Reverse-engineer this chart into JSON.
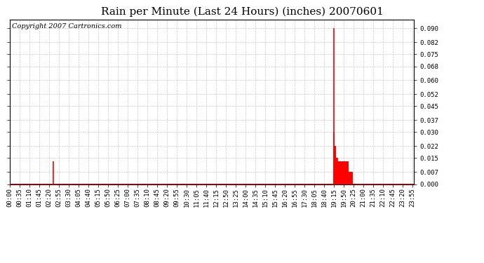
{
  "title": "Rain per Minute (Last 24 Hours) (inches) 20070601",
  "copyright": "Copyright 2007 Cartronics.com",
  "line_color": "#ff0000",
  "bg_color": "#ffffff",
  "grid_color": "#bbbbbb",
  "ylim": [
    0.0,
    0.095
  ],
  "yticks": [
    0.0,
    0.007,
    0.015,
    0.022,
    0.03,
    0.037,
    0.045,
    0.052,
    0.06,
    0.068,
    0.075,
    0.082,
    0.09
  ],
  "title_fontsize": 11,
  "copyright_fontsize": 7,
  "tick_fontsize": 6.5,
  "xtick_interval": 35,
  "total_minutes": 1440,
  "data_minutes": [
    155,
    1155,
    1156,
    1157,
    1158,
    1159,
    1160,
    1161,
    1162,
    1163,
    1164,
    1165,
    1166,
    1167,
    1168,
    1169,
    1170,
    1171,
    1172,
    1173,
    1174,
    1175,
    1176,
    1177,
    1178,
    1179,
    1180,
    1181,
    1182,
    1183,
    1184,
    1185,
    1186,
    1187,
    1188,
    1189,
    1190,
    1191,
    1192,
    1193,
    1194,
    1195,
    1196,
    1197,
    1198,
    1199,
    1200,
    1201,
    1202,
    1203,
    1204,
    1205,
    1206,
    1207,
    1208,
    1209,
    1210,
    1211,
    1212,
    1213,
    1214,
    1215,
    1216,
    1217,
    1218,
    1219,
    1220
  ],
  "data_values": [
    0.013,
    0.09,
    0.03,
    0.022,
    0.022,
    0.022,
    0.022,
    0.015,
    0.015,
    0.015,
    0.015,
    0.015,
    0.015,
    0.015,
    0.013,
    0.013,
    0.013,
    0.013,
    0.013,
    0.013,
    0.013,
    0.013,
    0.013,
    0.013,
    0.013,
    0.013,
    0.013,
    0.013,
    0.013,
    0.013,
    0.013,
    0.013,
    0.013,
    0.013,
    0.013,
    0.013,
    0.013,
    0.013,
    0.013,
    0.013,
    0.013,
    0.013,
    0.013,
    0.013,
    0.013,
    0.013,
    0.013,
    0.013,
    0.013,
    0.013,
    0.013,
    0.013,
    0.007,
    0.007,
    0.007,
    0.007,
    0.007,
    0.007,
    0.007,
    0.007,
    0.007,
    0.007,
    0.007,
    0.007,
    0.007,
    0.007,
    0.007
  ]
}
